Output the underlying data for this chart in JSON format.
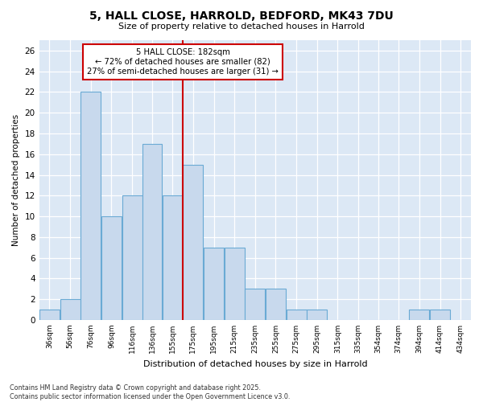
{
  "title1": "5, HALL CLOSE, HARROLD, BEDFORD, MK43 7DU",
  "title2": "Size of property relative to detached houses in Harrold",
  "xlabel": "Distribution of detached houses by size in Harrold",
  "ylabel": "Number of detached properties",
  "bins": [
    36,
    56,
    76,
    96,
    116,
    136,
    155,
    175,
    195,
    215,
    235,
    255,
    275,
    295,
    315,
    335,
    354,
    374,
    394,
    414,
    434
  ],
  "counts": [
    1,
    2,
    22,
    10,
    12,
    17,
    12,
    15,
    7,
    7,
    3,
    3,
    1,
    1,
    0,
    0,
    0,
    0,
    1,
    1,
    0
  ],
  "bar_color": "#c8d9ed",
  "bar_edge_color": "#6aaad4",
  "ref_line_x": 175,
  "ref_line_color": "#cc0000",
  "annotation_line1": "5 HALL CLOSE: 182sqm",
  "annotation_line2": "← 72% of detached houses are smaller (82)",
  "annotation_line3": "27% of semi-detached houses are larger (31) →",
  "annotation_box_color": "#ffffff",
  "annotation_box_edge": "#cc0000",
  "yticks": [
    0,
    2,
    4,
    6,
    8,
    10,
    12,
    14,
    16,
    18,
    20,
    22,
    24,
    26
  ],
  "ylim": [
    0,
    27
  ],
  "bg_color": "#ffffff",
  "plot_bg_color": "#dce8f5",
  "grid_color": "#ffffff",
  "footer": "Contains HM Land Registry data © Crown copyright and database right 2025.\nContains public sector information licensed under the Open Government Licence v3.0."
}
